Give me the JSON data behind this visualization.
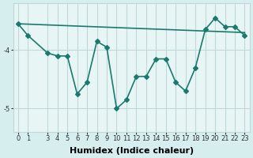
{
  "xlabel": "Humidex (Indice chaleur)",
  "ylabel": "",
  "bg_color": "#d6eeee",
  "line_color": "#1a7a6e",
  "trend_color": "#1a7a6e",
  "grid_color": "#c0d8d8",
  "axis_bg": "#e8f5f5",
  "x_values": [
    0,
    1,
    3,
    4,
    5,
    6,
    7,
    8,
    9,
    10,
    11,
    12,
    13,
    14,
    15,
    16,
    17,
    18,
    19,
    20,
    21,
    22,
    23
  ],
  "y_values": [
    -3.55,
    -3.75,
    -4.05,
    -4.1,
    -4.1,
    -4.75,
    -4.55,
    -3.85,
    -3.95,
    -5.0,
    -4.85,
    -4.45,
    -4.45,
    -4.15,
    -4.15,
    -4.55,
    -4.7,
    -4.3,
    -3.65,
    -3.45,
    -3.6,
    -3.6,
    -3.75
  ],
  "trend_x": [
    0,
    23
  ],
  "trend_y": [
    -3.55,
    -3.7
  ],
  "ylim": [
    -5.4,
    -3.2
  ],
  "yticks": [
    -5,
    -4
  ],
  "xlim": [
    -0.5,
    23.5
  ],
  "xtick_positions": [
    0,
    1,
    3,
    4,
    5,
    6,
    7,
    8,
    9,
    10,
    11,
    12,
    13,
    14,
    15,
    16,
    17,
    18,
    19,
    20,
    21,
    22,
    23
  ],
  "xtick_labels": [
    "0",
    "1",
    "3",
    "4",
    "5",
    "6",
    "7",
    "8",
    "9",
    "10",
    "11",
    "12",
    "13",
    "14",
    "15",
    "16",
    "17",
    "18",
    "19",
    "20",
    "21",
    "22",
    "23"
  ],
  "marker": "D",
  "markersize": 3,
  "linewidth": 1.2,
  "tick_fontsize": 6.0,
  "label_fontsize": 8
}
